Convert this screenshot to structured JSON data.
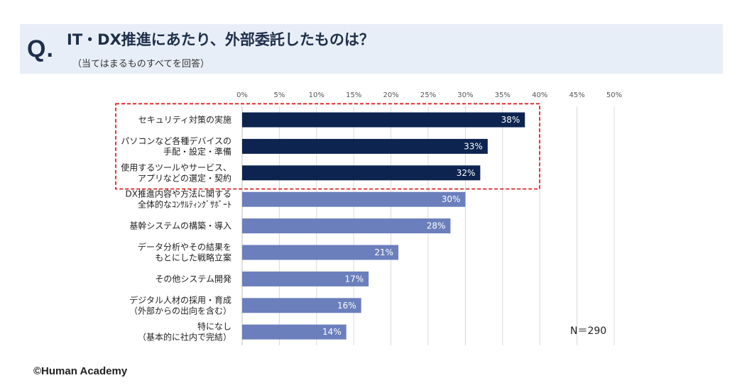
{
  "header": {
    "q_mark": "Q.",
    "title": "IT・DX推進にあたり、外部委託したものは？",
    "subtitle": "（当てはまるものすべてを回答）"
  },
  "chart_data": {
    "type": "bar",
    "orientation": "horizontal",
    "xlim": [
      0,
      50
    ],
    "x_ticks": [
      "0%",
      "5%",
      "10%",
      "15%",
      "20%",
      "25%",
      "30%",
      "35%",
      "40%",
      "45%",
      "50%"
    ],
    "categories": [
      [
        "セキュリティ対策の実施"
      ],
      [
        "パソコンなど各種デバイスの",
        "手配・設定・準備"
      ],
      [
        "使用するツールやサービス、",
        "アプリなどの選定・契約"
      ],
      [
        "DX推進内容や方法に関する",
        "全体的なｺﾝｻﾙﾃｨﾝｸﾞｻﾎﾟｰﾄ"
      ],
      [
        "基幹システムの構築・導入"
      ],
      [
        "データ分析やその結果を",
        "もとにした戦略立案"
      ],
      [
        "その他システム開発"
      ],
      [
        "デジタル人材の採用・育成",
        "（外部からの出向を含む）"
      ],
      [
        "特になし",
        "（基本的に社内で完結）"
      ]
    ],
    "values": [
      38,
      33,
      32,
      30,
      28,
      21,
      17,
      16,
      14
    ],
    "value_labels": [
      "38%",
      "33%",
      "32%",
      "30%",
      "28%",
      "21%",
      "17%",
      "16%",
      "14%"
    ],
    "highlighted_count": 3,
    "highlight_color": "#0d2450",
    "normal_color": "#6b7fbc",
    "highlight_box_color": "#e02020",
    "gridline_color": "#d9d9d9",
    "n_label": "N＝290"
  },
  "footer": {
    "copyright": "©Human Academy"
  }
}
